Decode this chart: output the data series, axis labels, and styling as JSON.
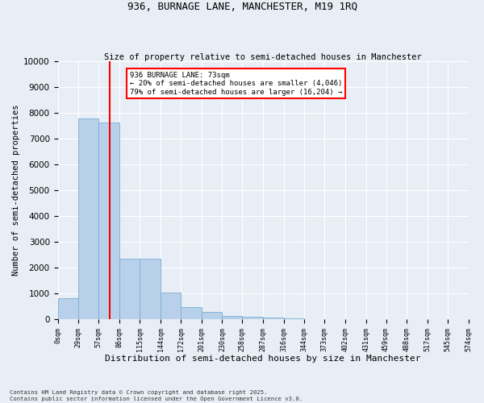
{
  "title": "936, BURNAGE LANE, MANCHESTER, M19 1RQ",
  "subtitle": "Size of property relative to semi-detached houses in Manchester",
  "xlabel": "Distribution of semi-detached houses by size in Manchester",
  "ylabel": "Number of semi-detached properties",
  "bar_color": "#b8d0ea",
  "bar_edge_color": "#7aaed6",
  "bg_color": "#e8eef5",
  "grid_color": "#ffffff",
  "vline_x": 73,
  "vline_color": "red",
  "annotation_text": "936 BURNAGE LANE: 73sqm\n← 20% of semi-detached houses are smaller (4,046)\n79% of semi-detached houses are larger (16,204) →",
  "annotation_box_color": "red",
  "bin_edges": [
    0,
    29,
    57,
    86,
    115,
    144,
    172,
    201,
    230,
    258,
    287,
    316,
    344,
    373,
    402,
    431,
    459,
    488,
    517,
    545,
    574
  ],
  "bar_heights": [
    820,
    7780,
    7620,
    2360,
    2360,
    1040,
    460,
    300,
    140,
    100,
    70,
    25,
    15,
    10,
    5,
    3,
    2,
    1,
    1,
    0
  ],
  "ylim": [
    0,
    10000
  ],
  "yticks": [
    0,
    1000,
    2000,
    3000,
    4000,
    5000,
    6000,
    7000,
    8000,
    9000,
    10000
  ],
  "copyright_text": "Contains HM Land Registry data © Crown copyright and database right 2025.\nContains public sector information licensed under the Open Government Licence v3.0.",
  "figsize": [
    6.0,
    5.0
  ],
  "dpi": 100
}
